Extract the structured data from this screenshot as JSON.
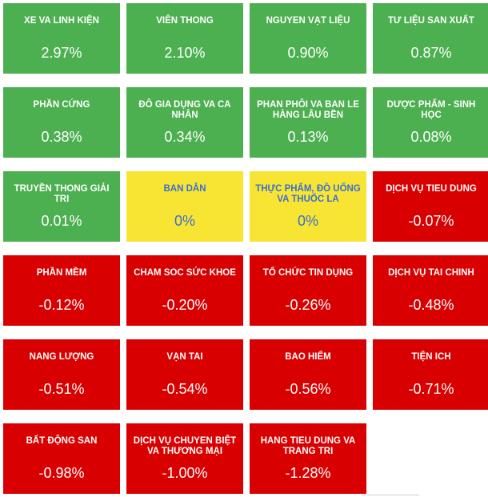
{
  "colors": {
    "up": "#4caf50",
    "neutral": "#f8e533",
    "down": "#d80000"
  },
  "sectors": [
    {
      "name": "XE VA LINH KIỆN",
      "value": "2.97%",
      "status": "green"
    },
    {
      "name": "VIÊN THONG",
      "value": "2.10%",
      "status": "green"
    },
    {
      "name": "NGUYEN VẠT LIỆU",
      "value": "0.90%",
      "status": "green"
    },
    {
      "name": "TƯ LIỆU SAN XUẤT",
      "value": "0.87%",
      "status": "green"
    },
    {
      "name": "PHẦN CỨNG",
      "value": "0.38%",
      "status": "green"
    },
    {
      "name": "ĐÔ GIA DỤNG VA CA NHÂN",
      "value": "0.34%",
      "status": "green"
    },
    {
      "name": "PHAN PHÔI VA BAN LE HÀNG LÂU BỀN",
      "value": "0.13%",
      "status": "green"
    },
    {
      "name": "DƯỢC PHẨM - SINH HỌC",
      "value": "0.08%",
      "status": "green"
    },
    {
      "name": "TRUYỀN THONG GIẢI TRI",
      "value": "0.01%",
      "status": "green"
    },
    {
      "name": "BAN DẪN",
      "value": "0%",
      "status": "yellow"
    },
    {
      "name": "THỰC PHẨM, ĐỒ UỐNG VA THUỐC LA",
      "value": "0%",
      "status": "yellow"
    },
    {
      "name": "DỊCH VỤ TIEU DUNG",
      "value": "-0.07%",
      "status": "red"
    },
    {
      "name": "PHẦN MỀM",
      "value": "-0.12%",
      "status": "red"
    },
    {
      "name": "CHAM SOC SỨC KHOE",
      "value": "-0.20%",
      "status": "red"
    },
    {
      "name": "TỔ CHỨC TIN DỤNG",
      "value": "-0.26%",
      "status": "red"
    },
    {
      "name": "DỊCH VỤ TAI CHINH",
      "value": "-0.48%",
      "status": "red"
    },
    {
      "name": "NANG LƯỢNG",
      "value": "-0.51%",
      "status": "red"
    },
    {
      "name": "VẠN TAI",
      "value": "-0.54%",
      "status": "red"
    },
    {
      "name": "BAO HIỂM",
      "value": "-0.56%",
      "status": "red"
    },
    {
      "name": "TIỆN ICH",
      "value": "-0.71%",
      "status": "red"
    },
    {
      "name": "BẤT ĐỘNG SAN",
      "value": "-0.98%",
      "status": "red"
    },
    {
      "name": "DỊCH VỤ CHUYEN BIỆT VA THƯƠNG MẠI",
      "value": "-1.00%",
      "status": "red"
    },
    {
      "name": "HANG TIEU DUNG VA TRANG TRI",
      "value": "-1.28%",
      "status": "red"
    }
  ]
}
